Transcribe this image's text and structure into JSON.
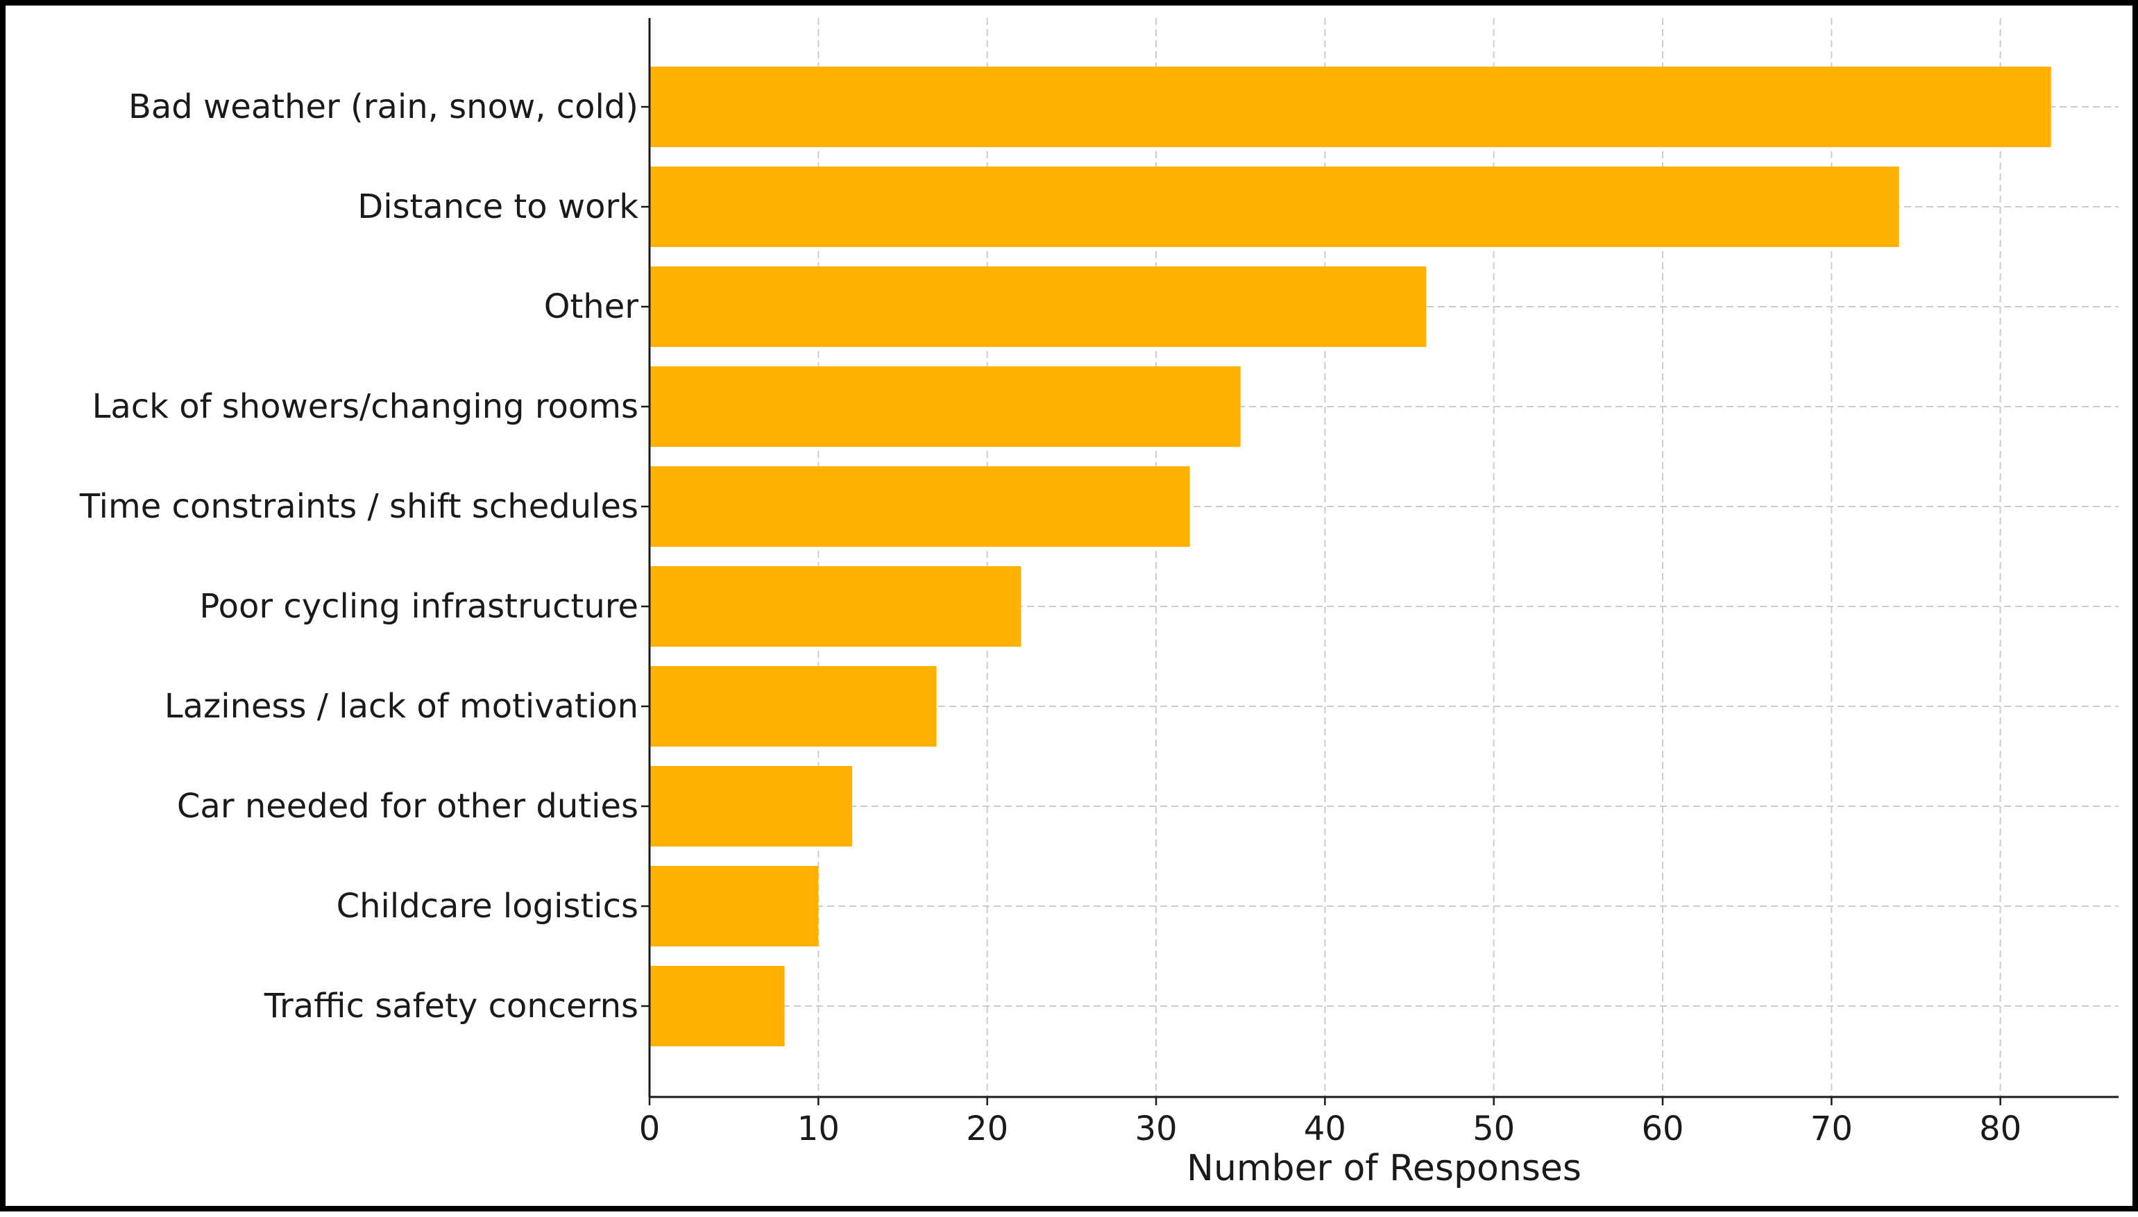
{
  "chart_data": {
    "type": "bar",
    "orientation": "horizontal",
    "title": "",
    "xlabel": "Number of Responses",
    "ylabel": "",
    "categories": [
      "Bad weather (rain, snow, cold)",
      "Distance to work",
      "Other",
      "Lack of showers/changing rooms",
      "Time constraints / shift schedules",
      "Poor cycling infrastructure",
      "Laziness / lack of motivation",
      "Car needed for other duties",
      "Childcare logistics",
      "Traffic safety concerns"
    ],
    "values": [
      83,
      74,
      46,
      35,
      32,
      22,
      17,
      12,
      10,
      8
    ],
    "xlim": [
      0,
      87
    ],
    "xticks": [
      0,
      10,
      20,
      30,
      40,
      50,
      60,
      70,
      80
    ],
    "xtick_labels": [
      "0",
      "10",
      "20",
      "30",
      "40",
      "50",
      "60",
      "70",
      "80"
    ],
    "grid": true,
    "bar_color": "#ffb000",
    "grid_color": "#cccccc"
  }
}
